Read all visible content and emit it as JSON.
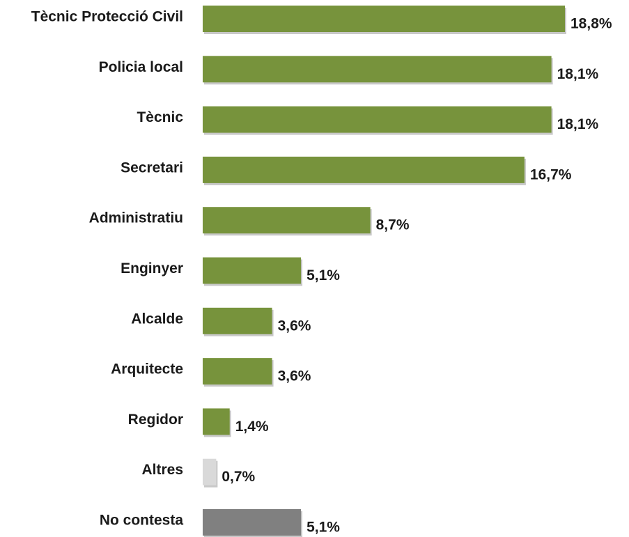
{
  "chart_data": {
    "type": "hbar",
    "categories": [
      "Tècnic Protecció Civil",
      "Policia local",
      "Tècnic",
      "Secretari",
      "Administratiu",
      "Enginyer",
      "Alcalde",
      "Arquitecte",
      "Regidor",
      "Altres",
      "No contesta"
    ],
    "values": [
      18.8,
      18.1,
      18.1,
      16.7,
      8.7,
      5.1,
      3.6,
      3.6,
      1.4,
      0.7,
      5.1
    ],
    "value_labels": [
      "18,8%",
      "18,1%",
      "18,1%",
      "16,7%",
      "8,7%",
      "5,1%",
      "3,6%",
      "3,6%",
      "1,4%",
      "0,7%",
      "5,1%"
    ],
    "colors": [
      "#77933c",
      "#77933c",
      "#77933c",
      "#77933c",
      "#77933c",
      "#77933c",
      "#77933c",
      "#77933c",
      "#77933c",
      "#d9d9d9",
      "#808080"
    ]
  }
}
